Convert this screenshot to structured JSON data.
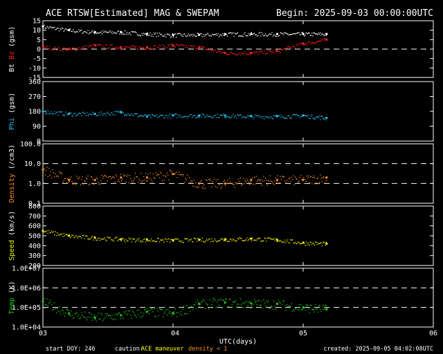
{
  "header": {
    "title": "ACE RTSW[Estimated] MAG & SWEPAM",
    "begin": "Begin: 2025-09-03 00:00:00UTC"
  },
  "footer": {
    "start_doy": "start DOY: 246",
    "caution_label": "caution:",
    "maneuver_label": "ACE maneuver",
    "density_label": "density < 1",
    "created": "created: 2025-09-05 04:02:08UTC"
  },
  "colors": {
    "background": "#000000",
    "frame": "#ffffff",
    "bt": "#ffffff",
    "bz": "#ff2020",
    "phi": "#20c0f0",
    "density": "#ff9020",
    "speed": "#f0f000",
    "temp": "#20d020",
    "maneuver": "#ffff00",
    "density_flag": "#ff9020"
  },
  "chart_data": [
    {
      "type": "scatter",
      "ylabel": [
        "Bt",
        "Bz",
        "(gsm)"
      ],
      "ylim": [
        -15,
        15
      ],
      "yticks": [
        "15",
        "10",
        "5",
        "0",
        "-5",
        "-10",
        "-15"
      ],
      "dashed_at": [
        0
      ],
      "x": [
        3.0,
        3.2,
        3.4,
        3.6,
        3.8,
        4.0,
        4.2,
        4.4,
        4.6,
        4.8,
        5.0,
        5.18
      ],
      "series": [
        {
          "name": "Bt",
          "values": [
            12,
            10,
            9,
            9,
            8,
            7.5,
            7.5,
            8,
            8,
            8,
            8,
            8
          ]
        },
        {
          "name": "Bz",
          "values": [
            1,
            0,
            2,
            1,
            1,
            2,
            1,
            -2,
            -2,
            -1,
            3,
            5
          ]
        }
      ]
    },
    {
      "type": "scatter",
      "ylabel": [
        "Phi",
        "(gsm)"
      ],
      "ylim": [
        0,
        360
      ],
      "yticks": [
        "360",
        "270",
        "180",
        "90",
        "0"
      ],
      "x": [
        3.0,
        3.2,
        3.4,
        3.6,
        3.8,
        4.0,
        4.2,
        4.4,
        4.6,
        4.8,
        5.0,
        5.18
      ],
      "series": [
        {
          "name": "Phi",
          "values": [
            180,
            165,
            165,
            175,
            150,
            155,
            155,
            155,
            150,
            150,
            155,
            140
          ]
        }
      ]
    },
    {
      "type": "scatter",
      "ylabel": [
        "Density",
        "(/cm3)"
      ],
      "yscale": "log",
      "ylim": [
        0.1,
        100
      ],
      "yticks": [
        "100.0",
        "10.0",
        "1.0",
        "0.1"
      ],
      "dashed_at": [
        10,
        1
      ],
      "x": [
        3.0,
        3.2,
        3.4,
        3.6,
        3.8,
        4.0,
        4.2,
        4.4,
        4.6,
        4.8,
        5.0,
        5.18
      ],
      "series": [
        {
          "name": "Density",
          "values": [
            5,
            1.5,
            1.5,
            2,
            2,
            3,
            1,
            1,
            1.5,
            1.5,
            1.5,
            2
          ]
        }
      ]
    },
    {
      "type": "scatter",
      "ylabel": [
        "Speed",
        "(km/s)"
      ],
      "ylim": [
        200,
        800
      ],
      "yticks": [
        "800",
        "700",
        "600",
        "500",
        "400",
        "300",
        "200"
      ],
      "x": [
        3.0,
        3.2,
        3.4,
        3.6,
        3.8,
        4.0,
        4.2,
        4.4,
        4.6,
        4.8,
        5.0,
        5.18
      ],
      "series": [
        {
          "name": "Speed",
          "values": [
            550,
            500,
            480,
            465,
            460,
            455,
            460,
            465,
            470,
            460,
            430,
            420
          ]
        }
      ]
    },
    {
      "type": "scatter",
      "ylabel": [
        "Temp",
        "(K)"
      ],
      "yscale": "log",
      "ylim": [
        10000,
        10000000
      ],
      "yticks": [
        "1.0E+07",
        "1.0E+06",
        "1.0E+05",
        "1.0E+04"
      ],
      "dashed_at": [
        1000000,
        100000
      ],
      "x": [
        3.0,
        3.2,
        3.4,
        3.6,
        3.8,
        4.0,
        4.2,
        4.4,
        4.6,
        4.8,
        5.0,
        5.18
      ],
      "series": [
        {
          "name": "Temp",
          "values": [
            200000,
            50000,
            30000,
            40000,
            60000,
            50000,
            150000,
            180000,
            160000,
            150000,
            100000,
            80000
          ]
        }
      ]
    }
  ],
  "x_axis": {
    "xlim": [
      3,
      6
    ],
    "tick_labels": [
      "03",
      "04",
      "05",
      "06"
    ],
    "label": "UTC(days)"
  }
}
